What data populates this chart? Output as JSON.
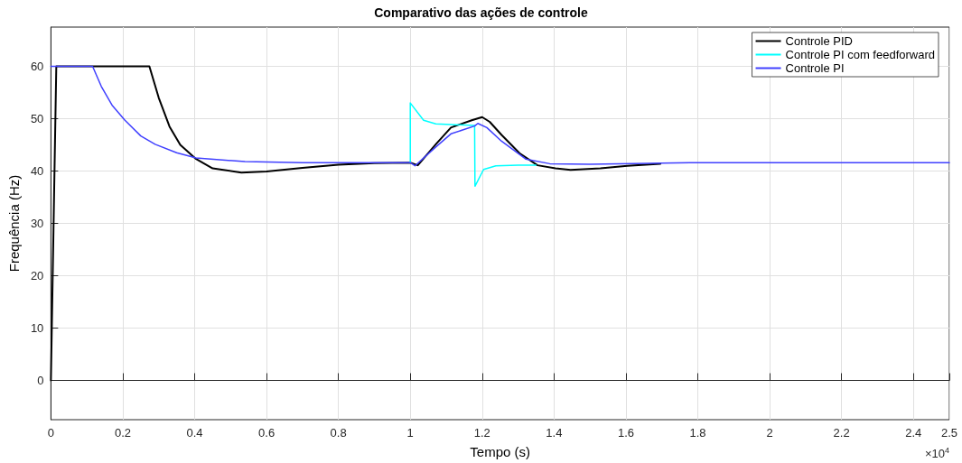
{
  "chart_data": {
    "type": "line",
    "title": "Comparativo das ações de controle",
    "xlabel": "Tempo (s)",
    "ylabel": "Frequência (Hz)",
    "annotations": [
      "×10$^{4}$"
    ],
    "xlim": [
      0,
      2.5
    ],
    "xticks": [
      0,
      0.2,
      0.4,
      0.6,
      0.8,
      1,
      1.2,
      1.4,
      1.6,
      1.8,
      2,
      2.2,
      2.4,
      2.5
    ],
    "ylim": [
      -7.5,
      67.5
    ],
    "yticks": [
      0,
      10,
      20,
      30,
      40,
      50,
      60
    ],
    "grid": true,
    "legend": "top right",
    "marker": "none",
    "line_style": "solid",
    "series": [
      {
        "name": "Controle PID",
        "color": "#000000",
        "x": [
          0,
          0.015,
          0.274,
          0.3,
          0.33,
          0.36,
          0.404,
          0.45,
          0.53,
          0.6,
          0.7,
          0.8,
          0.9,
          1.0,
          1.021,
          1.071,
          1.113,
          1.171,
          1.2,
          1.221,
          1.254,
          1.304,
          1.354,
          1.404,
          1.446,
          1.529,
          1.604,
          1.696
        ],
        "values": [
          0,
          60,
          60,
          54,
          48.5,
          45,
          42.3,
          40.5,
          39.7,
          39.9,
          40.6,
          41.2,
          41.5,
          41.6,
          41.1,
          45.1,
          48.3,
          49.7,
          50.3,
          49.4,
          46.9,
          43.4,
          41.1,
          40.5,
          40.2,
          40.5,
          41.0,
          41.4
        ]
      },
      {
        "name": "Controle PI com feedforward",
        "color": "#00ffff",
        "x": [
          1.0,
          1.0,
          1.037,
          1.071,
          1.179,
          1.18,
          1.204,
          1.238,
          1.3,
          1.35
        ],
        "values": [
          41.6,
          53.0,
          49.7,
          49.0,
          48.7,
          37.1,
          40.3,
          41.0,
          41.1,
          41.1
        ]
      },
      {
        "name": "Controle PI",
        "color": "#4040ff",
        "x": [
          0,
          0.116,
          0.14,
          0.17,
          0.206,
          0.25,
          0.29,
          0.35,
          0.404,
          0.54,
          0.7,
          0.9,
          1.0,
          1.013,
          1.071,
          1.113,
          1.179,
          1.188,
          1.213,
          1.254,
          1.321,
          1.388,
          1.5,
          1.8,
          2.5
        ],
        "values": [
          60,
          60,
          56.2,
          52.6,
          49.7,
          46.7,
          45.1,
          43.5,
          42.5,
          41.8,
          41.6,
          41.6,
          41.6,
          41.0,
          44.6,
          47.1,
          48.6,
          49.1,
          48.3,
          45.7,
          42.3,
          41.4,
          41.3,
          41.6,
          41.6
        ]
      }
    ]
  }
}
